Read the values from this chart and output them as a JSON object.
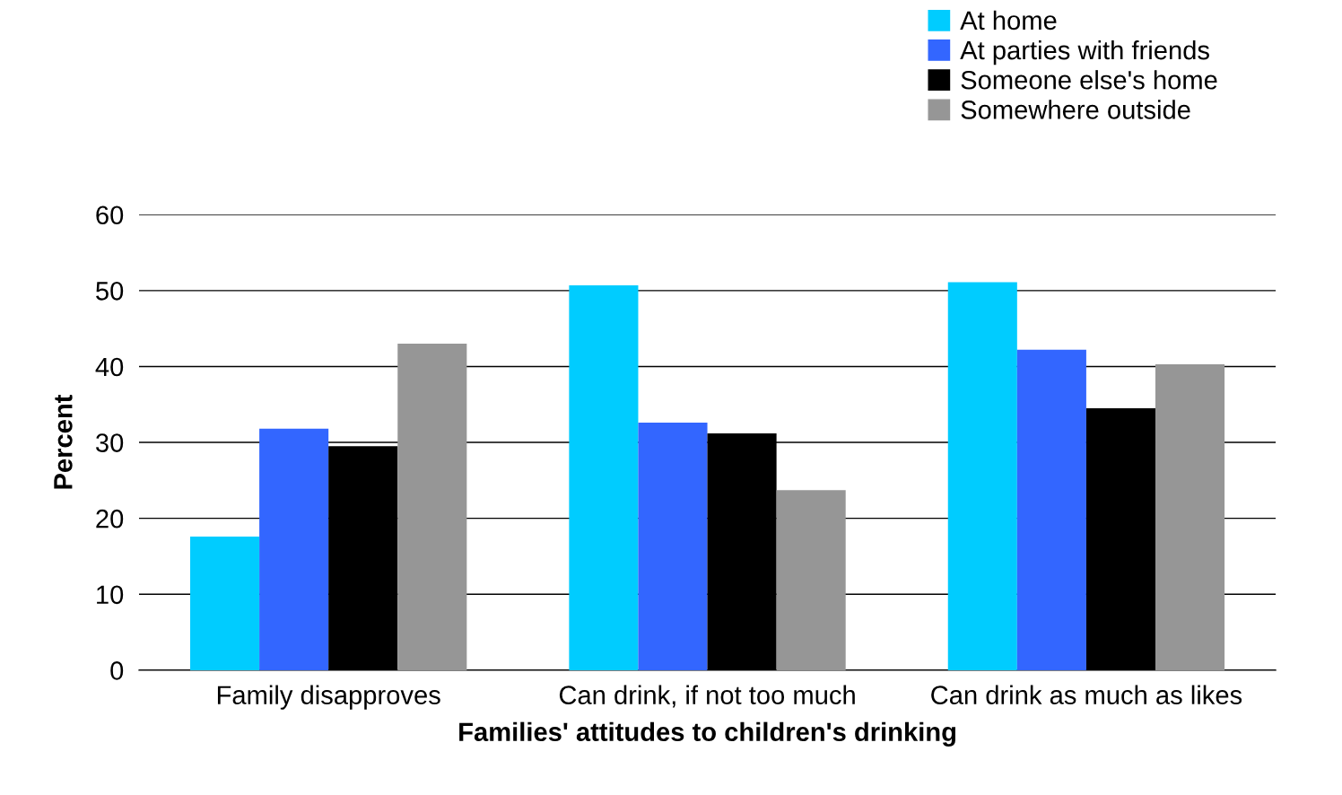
{
  "chart_data": {
    "type": "bar",
    "xlabel": "Families' attitudes to children's drinking",
    "ylabel": "Percent",
    "categories": [
      "Family disapproves",
      "Can drink, if not too much",
      "Can drink as much as likes"
    ],
    "series": [
      {
        "name": "At home",
        "color": "#00ccff",
        "values": [
          17.6,
          50.7,
          51.1
        ]
      },
      {
        "name": "At parties with friends",
        "color": "#3366ff",
        "values": [
          31.8,
          32.6,
          42.2
        ]
      },
      {
        "name": "Someone else's home",
        "color": "#000000",
        "values": [
          29.5,
          31.2,
          34.5
        ]
      },
      {
        "name": "Somewhere outside",
        "color": "#969696",
        "values": [
          43.0,
          23.7,
          40.3
        ]
      }
    ],
    "ylim": [
      0,
      60
    ],
    "yticks": [
      0,
      10,
      20,
      30,
      40,
      50,
      60
    ],
    "grid": "y",
    "legend": "top right"
  }
}
